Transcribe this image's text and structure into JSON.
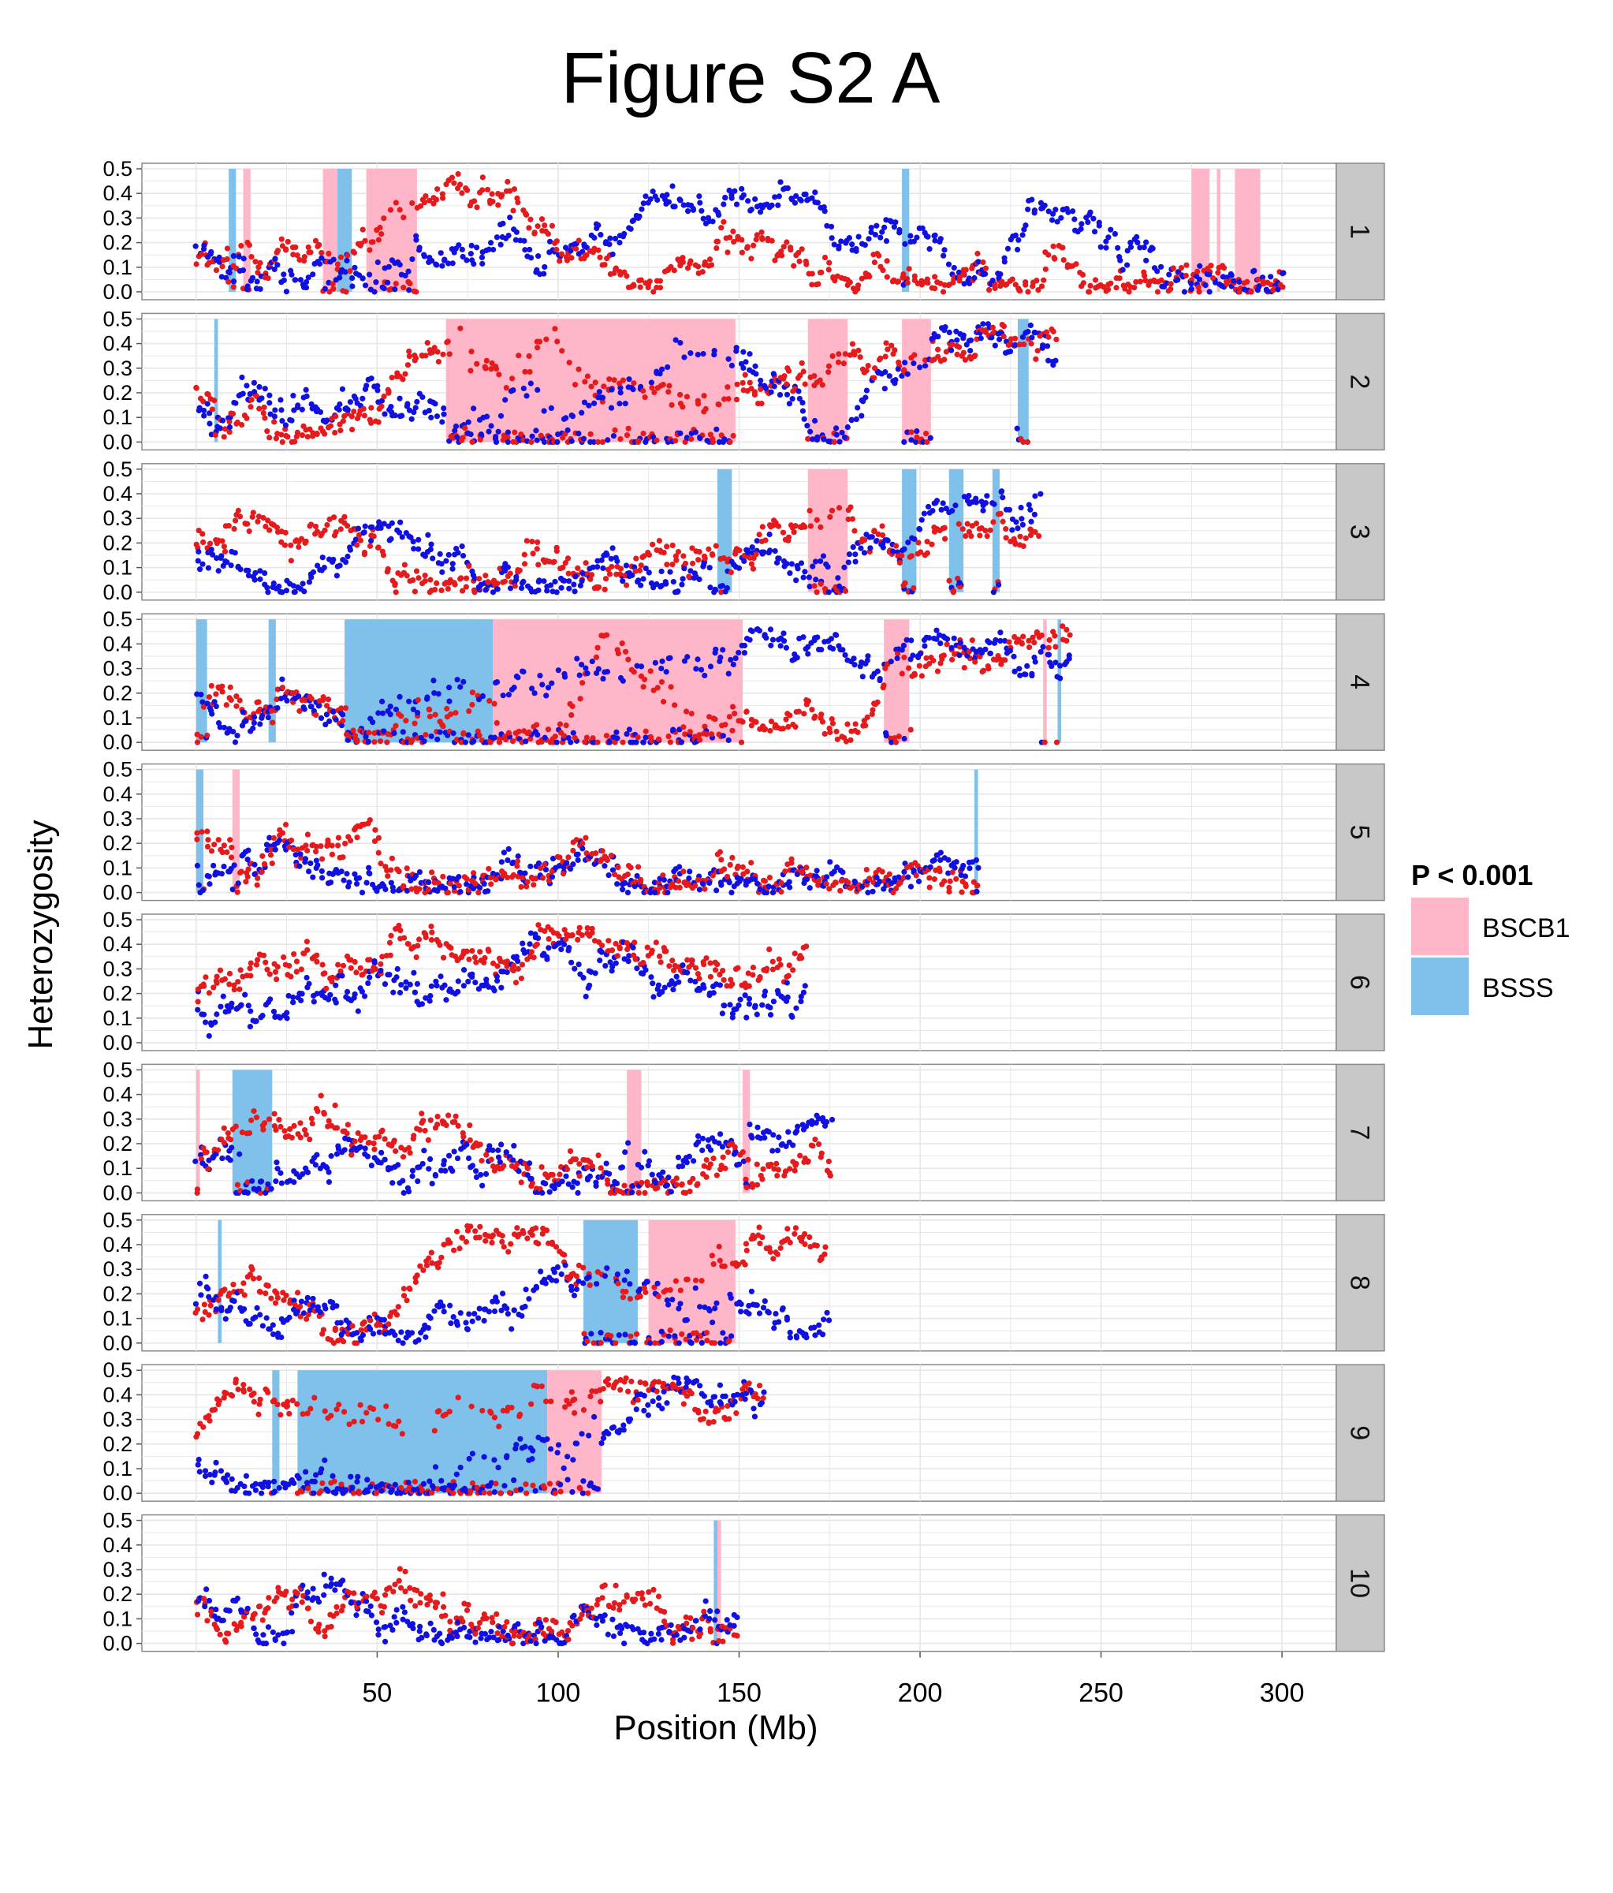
{
  "colors": {
    "BSCB1_region": "#FFB6C8",
    "BSSS_region": "#7FC1EA",
    "point_red": "#E41A1C",
    "point_blue": "#1010E0",
    "strip_bg": "#C8C8C8",
    "grid": "#E6E6E6"
  },
  "chart_data": {
    "type": "scatter",
    "title": "Figure S2 A",
    "xlabel": "Position (Mb)",
    "ylabel": "Heterozygosity",
    "xlim": [
      -15,
      315
    ],
    "ylim": [
      0,
      0.5
    ],
    "xticks": [
      50,
      100,
      150,
      200,
      250,
      300
    ],
    "yticks": [
      "0.0",
      "0.1",
      "0.2",
      "0.3",
      "0.4",
      "0.5"
    ],
    "grid": true,
    "legend": {
      "title": "P < 0.001",
      "position": "right",
      "items": [
        {
          "label": "BSCB1",
          "color": "#FFB6C8"
        },
        {
          "label": "BSSS",
          "color": "#7FC1EA"
        }
      ]
    },
    "series_colors": {
      "red": "#E41A1C",
      "blue": "#1010E0"
    },
    "panels": [
      {
        "label": "1",
        "length": 301,
        "regions": [
          {
            "start": 9,
            "end": 11,
            "group": "BSSS"
          },
          {
            "start": 13,
            "end": 15,
            "group": "BSCB1"
          },
          {
            "start": 35,
            "end": 39,
            "group": "BSCB1"
          },
          {
            "start": 39,
            "end": 43,
            "group": "BSSS"
          },
          {
            "start": 47,
            "end": 61,
            "group": "BSCB1"
          },
          {
            "start": 195,
            "end": 197,
            "group": "BSSS"
          },
          {
            "start": 275,
            "end": 280,
            "group": "BSCB1"
          },
          {
            "start": 282,
            "end": 283,
            "group": "BSCB1"
          },
          {
            "start": 287,
            "end": 294,
            "group": "BSCB1"
          }
        ]
      },
      {
        "label": "2",
        "length": 238,
        "regions": [
          {
            "start": 5,
            "end": 6,
            "group": "BSSS"
          },
          {
            "start": 69,
            "end": 149,
            "group": "BSCB1"
          },
          {
            "start": 169,
            "end": 180,
            "group": "BSCB1"
          },
          {
            "start": 195,
            "end": 197,
            "group": "BSCB1"
          },
          {
            "start": 197,
            "end": 203,
            "group": "BSCB1"
          },
          {
            "start": 227,
            "end": 230,
            "group": "BSSS"
          }
        ]
      },
      {
        "label": "3",
        "length": 233,
        "regions": [
          {
            "start": 144,
            "end": 148,
            "group": "BSSS"
          },
          {
            "start": 169,
            "end": 180,
            "group": "BSCB1"
          },
          {
            "start": 195,
            "end": 199,
            "group": "BSSS"
          },
          {
            "start": 208,
            "end": 212,
            "group": "BSSS"
          },
          {
            "start": 220,
            "end": 222,
            "group": "BSSS"
          }
        ]
      },
      {
        "label": "4",
        "length": 242,
        "regions": [
          {
            "start": 0,
            "end": 3,
            "group": "BSSS"
          },
          {
            "start": 20,
            "end": 22,
            "group": "BSSS"
          },
          {
            "start": 41,
            "end": 82,
            "group": "BSSS"
          },
          {
            "start": 82,
            "end": 151,
            "group": "BSCB1"
          },
          {
            "start": 190,
            "end": 197,
            "group": "BSCB1"
          },
          {
            "start": 234,
            "end": 235,
            "group": "BSCB1"
          },
          {
            "start": 238,
            "end": 239,
            "group": "BSSS"
          }
        ]
      },
      {
        "label": "5",
        "length": 217,
        "regions": [
          {
            "start": 0,
            "end": 2,
            "group": "BSSS"
          },
          {
            "start": 10,
            "end": 12,
            "group": "BSCB1"
          },
          {
            "start": 215,
            "end": 216,
            "group": "BSSS"
          }
        ]
      },
      {
        "label": "6",
        "length": 169,
        "regions": []
      },
      {
        "label": "7",
        "length": 176,
        "regions": [
          {
            "start": 0,
            "end": 1,
            "group": "BSCB1"
          },
          {
            "start": 10,
            "end": 21,
            "group": "BSSS"
          },
          {
            "start": 119,
            "end": 123,
            "group": "BSCB1"
          },
          {
            "start": 151,
            "end": 153,
            "group": "BSCB1"
          }
        ]
      },
      {
        "label": "8",
        "length": 175,
        "regions": [
          {
            "start": 6,
            "end": 7,
            "group": "BSSS"
          },
          {
            "start": 107,
            "end": 122,
            "group": "BSSS"
          },
          {
            "start": 125,
            "end": 149,
            "group": "BSCB1"
          }
        ]
      },
      {
        "label": "9",
        "length": 157,
        "regions": [
          {
            "start": 21,
            "end": 23,
            "group": "BSSS"
          },
          {
            "start": 28,
            "end": 97,
            "group": "BSSS"
          },
          {
            "start": 97,
            "end": 112,
            "group": "BSCB1"
          }
        ]
      },
      {
        "label": "10",
        "length": 150,
        "regions": [
          {
            "start": 143,
            "end": 144,
            "group": "BSSS"
          },
          {
            "start": 144,
            "end": 145,
            "group": "BSCB1"
          }
        ]
      }
    ]
  }
}
